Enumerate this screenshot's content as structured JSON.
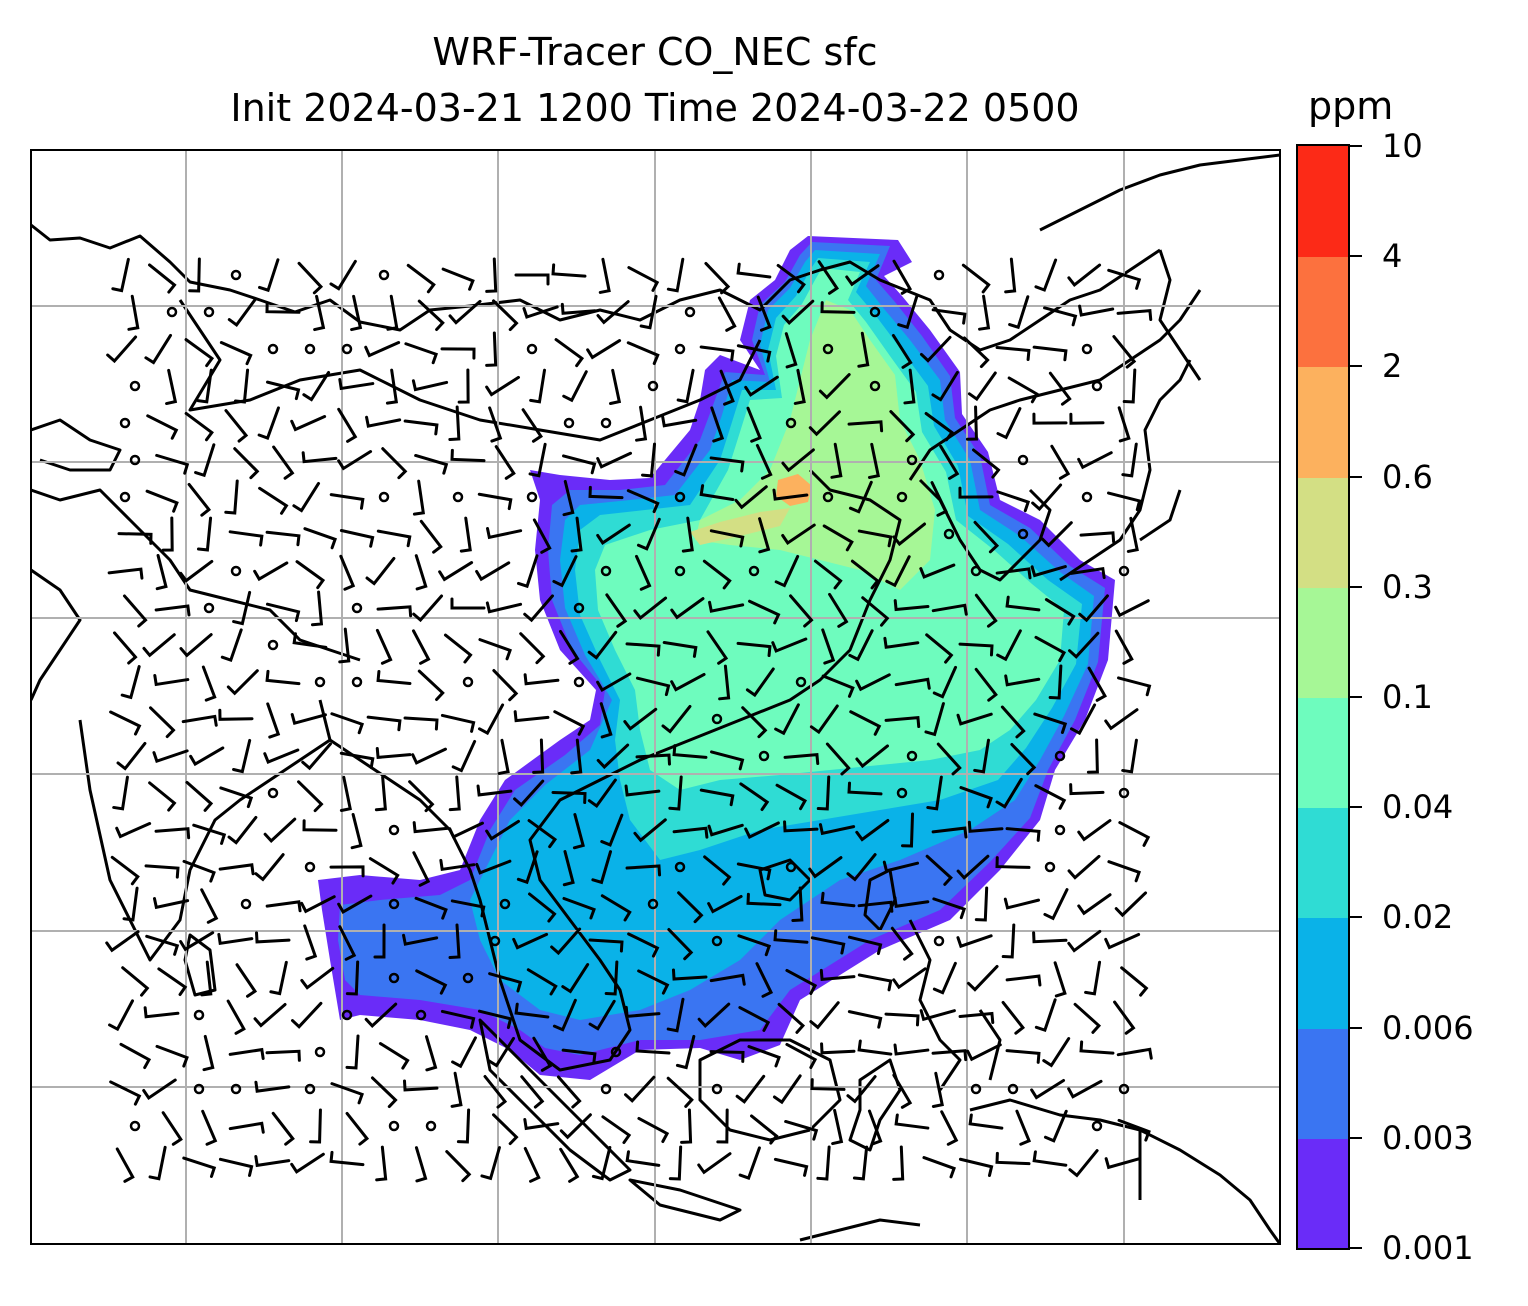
{
  "title": {
    "line1": "WRF-Tracer CO_NEC sfc",
    "line2": "Init 2024-03-21 1200 Time 2024-03-22 0500"
  },
  "colorbar": {
    "unit": "ppm",
    "ticks": [
      "0.001",
      "0.003",
      "0.006",
      "0.02",
      "0.04",
      "0.1",
      "0.3",
      "0.6",
      "2",
      "4",
      "10"
    ],
    "colors": [
      "#6a2cf8",
      "#3a75f2",
      "#0ab2e8",
      "#2fdcd4",
      "#6efcbe",
      "#a6f796",
      "#d3df84",
      "#fcb15e",
      "#fc713e",
      "#fc2a17"
    ]
  },
  "map": {
    "land_outline_color": "#000000",
    "grid_color": "#b0b0b0",
    "field_colors": {
      "outer": "#6a2cf8",
      "low": "#3a75f2",
      "mid": "#0ab2e8",
      "cyan": "#2fdcd4",
      "high": "#6efcbe",
      "peak": "#a6f796",
      "source": "#fcb15e"
    }
  }
}
